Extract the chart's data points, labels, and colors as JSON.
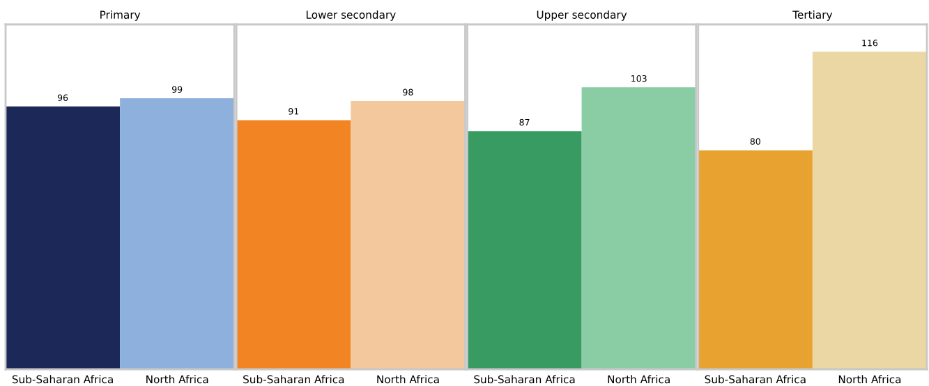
{
  "chart_data": [
    {
      "type": "bar",
      "title": "Primary",
      "categories": [
        "Sub-Saharan Africa",
        "North Africa"
      ],
      "values": [
        96,
        99
      ],
      "colors": [
        "#1b2858",
        "#8eb0dc"
      ],
      "data_labels": true,
      "ylim": [
        0,
        126
      ],
      "tick_labels": "x",
      "grid": false
    },
    {
      "type": "bar",
      "title": "Lower secondary",
      "categories": [
        "Sub-Saharan Africa",
        "North Africa"
      ],
      "values": [
        91,
        98
      ],
      "colors": [
        "#f28423",
        "#f2c89c"
      ],
      "data_labels": true,
      "ylim": [
        0,
        126
      ],
      "tick_labels": "x",
      "grid": false
    },
    {
      "type": "bar",
      "title": "Upper secondary",
      "categories": [
        "Sub-Saharan Africa",
        "North Africa"
      ],
      "values": [
        87,
        103
      ],
      "colors": [
        "#389c62",
        "#8acda4"
      ],
      "data_labels": true,
      "ylim": [
        0,
        126
      ],
      "tick_labels": "x",
      "grid": false
    },
    {
      "type": "bar",
      "title": "Tertiary",
      "categories": [
        "Sub-Saharan Africa",
        "North Africa"
      ],
      "values": [
        80,
        116
      ],
      "colors": [
        "#e7a22f",
        "#ead7a3"
      ],
      "data_labels": true,
      "ylim": [
        0,
        126
      ],
      "tick_labels": "x",
      "grid": false
    }
  ]
}
